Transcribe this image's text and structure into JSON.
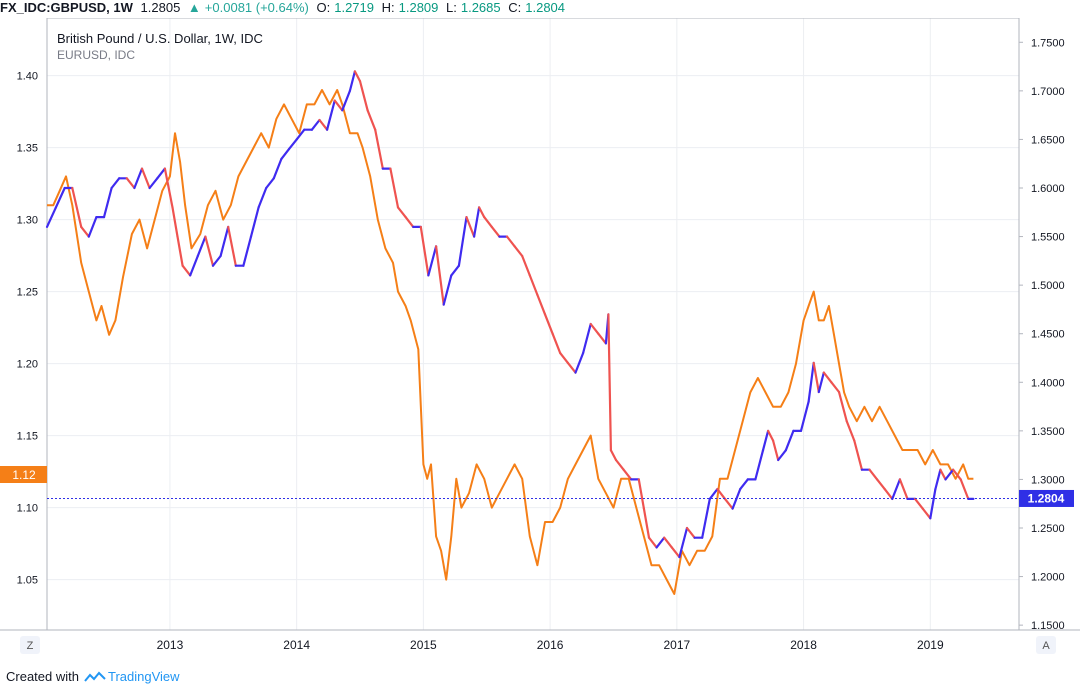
{
  "header": {
    "symbol": "FX_IDC:GBPUSD, 1W",
    "last": "1.2805",
    "change": "+0.0081 (+0.64%)",
    "open_label": "O:",
    "open": "1.2719",
    "high_label": "H:",
    "high": "1.2809",
    "low_label": "L:",
    "low": "1.2685",
    "close_label": "C:",
    "close": "1.2804"
  },
  "footer": {
    "created_with": "Created with",
    "brand": "TradingView"
  },
  "buttons": {
    "left": "Z",
    "right": "A"
  },
  "chart_data": {
    "type": "line",
    "title": "British Pound / U.S. Dollar, 1W, IDC",
    "subtitle": "EURUSD, IDC",
    "x_ticks": [
      "2013",
      "2014",
      "2015",
      "2016",
      "2017",
      "2018",
      "2019"
    ],
    "x_range": [
      2012.03,
      2019.7
    ],
    "left_axis": {
      "ylim": [
        1.015,
        1.44
      ],
      "ticks": [
        "1.05",
        "1.10",
        "1.15",
        "1.20",
        "1.25",
        "1.30",
        "1.35",
        "1.40"
      ]
    },
    "right_axis": {
      "ylim": [
        1.145,
        1.775
      ],
      "ticks": [
        "1.1500",
        "1.2000",
        "1.2500",
        "1.3000",
        "1.3500",
        "1.4000",
        "1.4500",
        "1.5000",
        "1.5500",
        "1.6000",
        "1.6500",
        "1.7000",
        "1.7500"
      ]
    },
    "left_badge": "1.12",
    "right_badge": "1.2804",
    "right_badge_value": 1.2804,
    "grid": true,
    "colors": {
      "eurusd": "#f57f17",
      "up": "#3f2bf0",
      "down": "#ef5350",
      "badge_left": "#f57f17",
      "badge_right": "#2f2fe6",
      "price_line": "#2f2fe6"
    },
    "series": [
      {
        "axis": "left",
        "x": [
          2012.03,
          2012.08,
          2012.13,
          2012.18,
          2012.23,
          2012.3,
          2012.36,
          2012.42,
          2012.46,
          2012.52,
          2012.57,
          2012.63,
          2012.7,
          2012.76,
          2012.82,
          2012.88,
          2012.94,
          2013.0,
          2013.04,
          2013.08,
          2013.12,
          2013.17,
          2013.24,
          2013.3,
          2013.36,
          2013.42,
          2013.48,
          2013.54,
          2013.6,
          2013.66,
          2013.72,
          2013.78,
          2013.84,
          2013.9,
          2013.96,
          2014.02,
          2014.08,
          2014.14,
          2014.2,
          2014.26,
          2014.32,
          2014.36,
          2014.42,
          2014.48,
          2014.52,
          2014.58,
          2014.64,
          2014.7,
          2014.76,
          2014.8,
          2014.86,
          2014.9,
          2014.96,
          2015.0,
          2015.03,
          2015.06,
          2015.1,
          2015.14,
          2015.18,
          2015.22,
          2015.26,
          2015.3,
          2015.36,
          2015.42,
          2015.48,
          2015.54,
          2015.6,
          2015.66,
          2015.72,
          2015.78,
          2015.84,
          2015.9,
          2015.96,
          2016.02,
          2016.08,
          2016.14,
          2016.2,
          2016.26,
          2016.32,
          2016.38,
          2016.44,
          2016.5,
          2016.56,
          2016.62,
          2016.68,
          2016.74,
          2016.8,
          2016.86,
          2016.92,
          2016.98,
          2017.04,
          2017.1,
          2017.16,
          2017.22,
          2017.28,
          2017.34,
          2017.4,
          2017.46,
          2017.52,
          2017.58,
          2017.64,
          2017.7,
          2017.76,
          2017.82,
          2017.88,
          2017.94,
          2018.0,
          2018.04,
          2018.08,
          2018.12,
          2018.16,
          2018.2,
          2018.24,
          2018.28,
          2018.32,
          2018.36,
          2018.42,
          2018.48,
          2018.54,
          2018.6,
          2018.66,
          2018.72,
          2018.78,
          2018.84,
          2018.9,
          2018.96,
          2019.02,
          2019.08,
          2019.14,
          2019.2,
          2019.26,
          2019.3,
          2019.34
        ],
        "values": [
          1.31,
          1.31,
          1.32,
          1.33,
          1.31,
          1.27,
          1.25,
          1.23,
          1.24,
          1.22,
          1.23,
          1.26,
          1.29,
          1.3,
          1.28,
          1.3,
          1.32,
          1.33,
          1.36,
          1.34,
          1.31,
          1.28,
          1.29,
          1.31,
          1.32,
          1.3,
          1.31,
          1.33,
          1.34,
          1.35,
          1.36,
          1.35,
          1.37,
          1.38,
          1.37,
          1.36,
          1.38,
          1.38,
          1.39,
          1.38,
          1.39,
          1.38,
          1.36,
          1.36,
          1.35,
          1.33,
          1.3,
          1.28,
          1.27,
          1.25,
          1.24,
          1.23,
          1.21,
          1.13,
          1.12,
          1.13,
          1.08,
          1.07,
          1.05,
          1.08,
          1.12,
          1.1,
          1.11,
          1.13,
          1.12,
          1.1,
          1.11,
          1.12,
          1.13,
          1.12,
          1.08,
          1.06,
          1.09,
          1.09,
          1.1,
          1.12,
          1.13,
          1.14,
          1.15,
          1.12,
          1.11,
          1.1,
          1.12,
          1.12,
          1.1,
          1.08,
          1.06,
          1.06,
          1.05,
          1.04,
          1.07,
          1.06,
          1.07,
          1.07,
          1.08,
          1.12,
          1.12,
          1.14,
          1.16,
          1.18,
          1.19,
          1.18,
          1.17,
          1.17,
          1.18,
          1.2,
          1.23,
          1.24,
          1.25,
          1.23,
          1.23,
          1.24,
          1.22,
          1.2,
          1.18,
          1.17,
          1.16,
          1.17,
          1.16,
          1.17,
          1.16,
          1.15,
          1.14,
          1.14,
          1.14,
          1.13,
          1.14,
          1.13,
          1.13,
          1.12,
          1.13,
          1.12,
          1.12
        ],
        "name": "EURUSD, IDC"
      },
      {
        "axis": "right",
        "x": [
          2012.03,
          2012.1,
          2012.17,
          2012.23,
          2012.3,
          2012.36,
          2012.42,
          2012.48,
          2012.54,
          2012.6,
          2012.66,
          2012.72,
          2012.78,
          2012.84,
          2012.9,
          2012.96,
          2013.02,
          2013.06,
          2013.1,
          2013.16,
          2013.22,
          2013.28,
          2013.34,
          2013.4,
          2013.46,
          2013.52,
          2013.58,
          2013.64,
          2013.7,
          2013.76,
          2013.82,
          2013.88,
          2013.94,
          2014.0,
          2014.06,
          2014.12,
          2014.18,
          2014.24,
          2014.3,
          2014.36,
          2014.42,
          2014.46,
          2014.5,
          2014.56,
          2014.62,
          2014.68,
          2014.74,
          2014.8,
          2014.86,
          2014.92,
          2014.98,
          2015.04,
          2015.1,
          2015.16,
          2015.22,
          2015.28,
          2015.34,
          2015.4,
          2015.44,
          2015.48,
          2015.54,
          2015.6,
          2015.66,
          2015.72,
          2015.78,
          2015.84,
          2015.9,
          2015.96,
          2016.02,
          2016.08,
          2016.14,
          2016.2,
          2016.26,
          2016.32,
          2016.38,
          2016.44,
          2016.46,
          2016.48,
          2016.52,
          2016.58,
          2016.64,
          2016.7,
          2016.74,
          2016.78,
          2016.84,
          2016.9,
          2016.96,
          2017.02,
          2017.08,
          2017.14,
          2017.2,
          2017.26,
          2017.32,
          2017.38,
          2017.44,
          2017.5,
          2017.56,
          2017.62,
          2017.68,
          2017.72,
          2017.76,
          2017.8,
          2017.86,
          2017.92,
          2017.98,
          2018.04,
          2018.08,
          2018.12,
          2018.16,
          2018.22,
          2018.28,
          2018.34,
          2018.4,
          2018.46,
          2018.52,
          2018.58,
          2018.64,
          2018.7,
          2018.76,
          2018.82,
          2018.88,
          2018.94,
          2019.0,
          2019.04,
          2019.08,
          2019.12,
          2019.18,
          2019.24,
          2019.3,
          2019.34
        ],
        "values": [
          1.56,
          1.58,
          1.6,
          1.6,
          1.56,
          1.55,
          1.57,
          1.57,
          1.6,
          1.61,
          1.61,
          1.6,
          1.62,
          1.6,
          1.61,
          1.62,
          1.58,
          1.55,
          1.52,
          1.51,
          1.53,
          1.55,
          1.52,
          1.53,
          1.56,
          1.52,
          1.52,
          1.55,
          1.58,
          1.6,
          1.61,
          1.63,
          1.64,
          1.65,
          1.66,
          1.66,
          1.67,
          1.66,
          1.69,
          1.68,
          1.7,
          1.72,
          1.71,
          1.68,
          1.66,
          1.62,
          1.62,
          1.58,
          1.57,
          1.56,
          1.56,
          1.51,
          1.54,
          1.48,
          1.51,
          1.52,
          1.57,
          1.55,
          1.58,
          1.57,
          1.56,
          1.55,
          1.55,
          1.54,
          1.53,
          1.51,
          1.49,
          1.47,
          1.45,
          1.43,
          1.42,
          1.41,
          1.43,
          1.46,
          1.45,
          1.44,
          1.47,
          1.33,
          1.32,
          1.31,
          1.3,
          1.3,
          1.27,
          1.24,
          1.23,
          1.24,
          1.23,
          1.22,
          1.25,
          1.24,
          1.24,
          1.28,
          1.29,
          1.28,
          1.27,
          1.29,
          1.3,
          1.3,
          1.33,
          1.35,
          1.34,
          1.32,
          1.33,
          1.35,
          1.35,
          1.38,
          1.42,
          1.39,
          1.41,
          1.4,
          1.39,
          1.36,
          1.34,
          1.31,
          1.31,
          1.3,
          1.29,
          1.28,
          1.3,
          1.28,
          1.28,
          1.27,
          1.26,
          1.29,
          1.31,
          1.3,
          1.31,
          1.3,
          1.28,
          1.28
        ]
      }
    ]
  }
}
